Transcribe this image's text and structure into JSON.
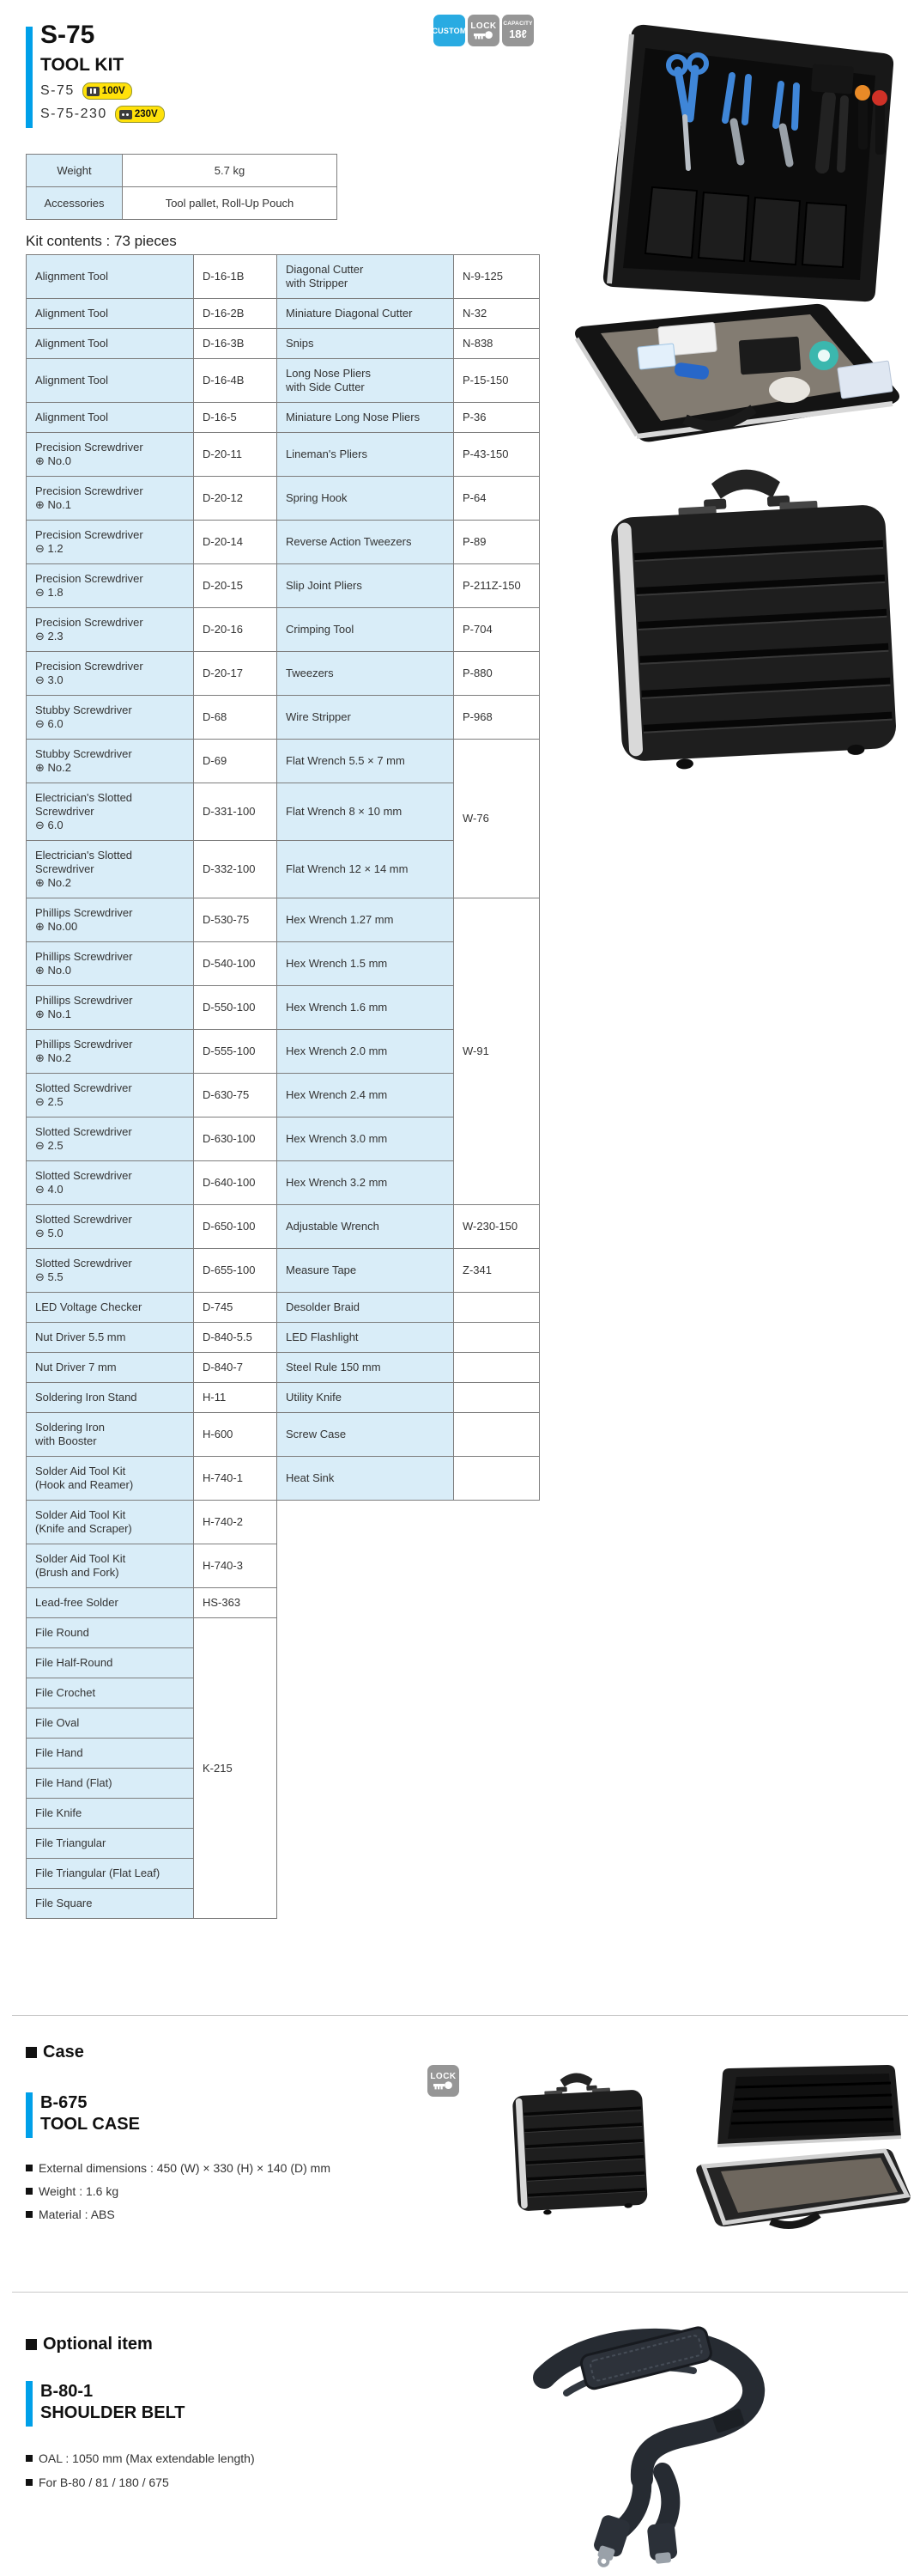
{
  "header": {
    "model": "S-75",
    "type": "TOOL KIT",
    "variants": [
      {
        "model": "S-75",
        "plug": "two-flat-pin",
        "voltage": "100V"
      },
      {
        "model": "S-75-230",
        "plug": "two-round-pin",
        "voltage": "230V"
      }
    ],
    "badges": {
      "custom": "CUSTOM",
      "lock": "LOCK",
      "capacity_label": "CAPACITY",
      "capacity_value": "18ℓ"
    }
  },
  "spec_table": {
    "rows": [
      {
        "label": "Weight",
        "value": "5.7 kg"
      },
      {
        "label": "Accessories",
        "value": "Tool pallet, Roll-Up Pouch"
      }
    ]
  },
  "kit_contents_heading": "Kit contents : 73 pieces",
  "kit_table": {
    "rows": [
      [
        {
          "t": "Alignment Tool",
          "c": "name"
        },
        {
          "t": "D-16-1B",
          "c": "model"
        },
        {
          "t": "Diagonal Cutter\nwith Stripper",
          "c": "name"
        },
        {
          "t": "N-9-125",
          "c": "model"
        }
      ],
      [
        {
          "t": "Alignment Tool",
          "c": "name"
        },
        {
          "t": "D-16-2B",
          "c": "model"
        },
        {
          "t": "Miniature Diagonal Cutter",
          "c": "name"
        },
        {
          "t": "N-32",
          "c": "model"
        }
      ],
      [
        {
          "t": "Alignment Tool",
          "c": "name"
        },
        {
          "t": "D-16-3B",
          "c": "model"
        },
        {
          "t": "Snips",
          "c": "name"
        },
        {
          "t": "N-838",
          "c": "model"
        }
      ],
      [
        {
          "t": "Alignment Tool",
          "c": "name"
        },
        {
          "t": "D-16-4B",
          "c": "model"
        },
        {
          "t": "Long Nose Pliers\nwith Side Cutter",
          "c": "name"
        },
        {
          "t": "P-15-150",
          "c": "model"
        }
      ],
      [
        {
          "t": "Alignment Tool",
          "c": "name"
        },
        {
          "t": "D-16-5",
          "c": "model"
        },
        {
          "t": "Miniature Long Nose Pliers",
          "c": "name"
        },
        {
          "t": "P-36",
          "c": "model"
        }
      ],
      [
        {
          "t": "Precision Screwdriver\n⊕ No.0",
          "c": "name"
        },
        {
          "t": "D-20-11",
          "c": "model"
        },
        {
          "t": "Lineman's Pliers",
          "c": "name"
        },
        {
          "t": "P-43-150",
          "c": "model"
        }
      ],
      [
        {
          "t": "Precision Screwdriver\n⊕ No.1",
          "c": "name"
        },
        {
          "t": "D-20-12",
          "c": "model"
        },
        {
          "t": "Spring Hook",
          "c": "name"
        },
        {
          "t": "P-64",
          "c": "model"
        }
      ],
      [
        {
          "t": "Precision Screwdriver\n⊖ 1.2",
          "c": "name"
        },
        {
          "t": "D-20-14",
          "c": "model"
        },
        {
          "t": "Reverse Action Tweezers",
          "c": "name"
        },
        {
          "t": "P-89",
          "c": "model"
        }
      ],
      [
        {
          "t": "Precision Screwdriver\n⊖ 1.8",
          "c": "name"
        },
        {
          "t": "D-20-15",
          "c": "model"
        },
        {
          "t": "Slip Joint Pliers",
          "c": "name"
        },
        {
          "t": "P-211Z-150",
          "c": "model"
        }
      ],
      [
        {
          "t": "Precision Screwdriver\n⊖ 2.3",
          "c": "name"
        },
        {
          "t": "D-20-16",
          "c": "model"
        },
        {
          "t": "Crimping Tool",
          "c": "name"
        },
        {
          "t": "P-704",
          "c": "model"
        }
      ],
      [
        {
          "t": "Precision Screwdriver\n⊖ 3.0",
          "c": "name"
        },
        {
          "t": "D-20-17",
          "c": "model"
        },
        {
          "t": "Tweezers",
          "c": "name"
        },
        {
          "t": "P-880",
          "c": "model"
        }
      ],
      [
        {
          "t": "Stubby Screwdriver\n⊖ 6.0",
          "c": "name"
        },
        {
          "t": "D-68",
          "c": "model"
        },
        {
          "t": "Wire Stripper",
          "c": "name"
        },
        {
          "t": "P-968",
          "c": "model"
        }
      ],
      [
        {
          "t": "Stubby Screwdriver\n⊕ No.2",
          "c": "name"
        },
        {
          "t": "D-69",
          "c": "model"
        },
        {
          "t": "Flat Wrench 5.5 × 7 mm",
          "c": "name"
        },
        {
          "t": "W-76",
          "c": "model",
          "rs": 3
        }
      ],
      [
        {
          "t": "Electrician's Slotted\nScrewdriver\n⊖ 6.0",
          "c": "name"
        },
        {
          "t": "D-331-100",
          "c": "model"
        },
        {
          "t": "Flat Wrench 8 × 10 mm",
          "c": "name"
        }
      ],
      [
        {
          "t": "Electrician's Slotted\nScrewdriver\n⊕ No.2",
          "c": "name"
        },
        {
          "t": "D-332-100",
          "c": "model"
        },
        {
          "t": "Flat Wrench 12 × 14 mm",
          "c": "name"
        }
      ],
      [
        {
          "t": "Phillips Screwdriver\n⊕ No.00",
          "c": "name"
        },
        {
          "t": "D-530-75",
          "c": "model"
        },
        {
          "t": "Hex Wrench 1.27 mm",
          "c": "name"
        },
        {
          "t": "W-91",
          "c": "model",
          "rs": 7
        }
      ],
      [
        {
          "t": "Phillips Screwdriver\n⊕ No.0",
          "c": "name"
        },
        {
          "t": "D-540-100",
          "c": "model"
        },
        {
          "t": "Hex Wrench 1.5 mm",
          "c": "name"
        }
      ],
      [
        {
          "t": "Phillips Screwdriver\n⊕ No.1",
          "c": "name"
        },
        {
          "t": "D-550-100",
          "c": "model"
        },
        {
          "t": "Hex Wrench 1.6 mm",
          "c": "name"
        }
      ],
      [
        {
          "t": "Phillips Screwdriver\n⊕ No.2",
          "c": "name"
        },
        {
          "t": "D-555-100",
          "c": "model"
        },
        {
          "t": "Hex Wrench 2.0 mm",
          "c": "name"
        }
      ],
      [
        {
          "t": "Slotted Screwdriver\n⊖ 2.5",
          "c": "name"
        },
        {
          "t": "D-630-75",
          "c": "model"
        },
        {
          "t": "Hex Wrench 2.4 mm",
          "c": "name"
        }
      ],
      [
        {
          "t": "Slotted Screwdriver\n⊖ 2.5",
          "c": "name"
        },
        {
          "t": "D-630-100",
          "c": "model"
        },
        {
          "t": "Hex Wrench 3.0 mm",
          "c": "name"
        }
      ],
      [
        {
          "t": "Slotted Screwdriver\n⊖ 4.0",
          "c": "name"
        },
        {
          "t": "D-640-100",
          "c": "model"
        },
        {
          "t": "Hex Wrench 3.2 mm",
          "c": "name"
        }
      ],
      [
        {
          "t": "Slotted Screwdriver\n⊖ 5.0",
          "c": "name"
        },
        {
          "t": "D-650-100",
          "c": "model"
        },
        {
          "t": "Adjustable Wrench",
          "c": "name"
        },
        {
          "t": "W-230-150",
          "c": "model"
        }
      ],
      [
        {
          "t": "Slotted Screwdriver\n⊖ 5.5",
          "c": "name"
        },
        {
          "t": "D-655-100",
          "c": "model"
        },
        {
          "t": "Measure Tape",
          "c": "name"
        },
        {
          "t": "Z-341",
          "c": "model"
        }
      ],
      [
        {
          "t": "LED Voltage Checker",
          "c": "name"
        },
        {
          "t": "D-745",
          "c": "model"
        },
        {
          "t": "Desolder Braid",
          "c": "name"
        },
        {
          "t": "",
          "c": "model"
        }
      ],
      [
        {
          "t": "Nut Driver 5.5 mm",
          "c": "name"
        },
        {
          "t": "D-840-5.5",
          "c": "model"
        },
        {
          "t": "LED Flashlight",
          "c": "name"
        },
        {
          "t": "",
          "c": "model"
        }
      ],
      [
        {
          "t": "Nut Driver 7 mm",
          "c": "name"
        },
        {
          "t": "D-840-7",
          "c": "model"
        },
        {
          "t": "Steel Rule 150 mm",
          "c": "name"
        },
        {
          "t": "",
          "c": "model"
        }
      ],
      [
        {
          "t": "Soldering Iron Stand",
          "c": "name"
        },
        {
          "t": "H-11",
          "c": "model"
        },
        {
          "t": "Utility Knife",
          "c": "name"
        },
        {
          "t": "",
          "c": "model"
        }
      ],
      [
        {
          "t": "Soldering Iron\nwith Booster",
          "c": "name"
        },
        {
          "t": "H-600",
          "c": "model"
        },
        {
          "t": "Screw Case",
          "c": "name"
        },
        {
          "t": "",
          "c": "model"
        }
      ],
      [
        {
          "t": "Solder Aid Tool Kit\n(Hook and Reamer)",
          "c": "name"
        },
        {
          "t": "H-740-1",
          "c": "model"
        },
        {
          "t": "Heat Sink",
          "c": "name"
        },
        {
          "t": "",
          "c": "model"
        }
      ],
      [
        {
          "t": "Solder Aid Tool Kit\n(Knife and Scraper)",
          "c": "name"
        },
        {
          "t": "H-740-2",
          "c": "model"
        }
      ],
      [
        {
          "t": "Solder Aid Tool Kit\n(Brush and Fork)",
          "c": "name"
        },
        {
          "t": "H-740-3",
          "c": "model"
        }
      ],
      [
        {
          "t": "Lead-free Solder",
          "c": "name"
        },
        {
          "t": "HS-363",
          "c": "model"
        }
      ],
      [
        {
          "t": "File Round",
          "c": "name"
        },
        {
          "t": "K-215",
          "c": "model",
          "rs": 10
        }
      ],
      [
        {
          "t": "File Half-Round",
          "c": "name"
        }
      ],
      [
        {
          "t": "File Crochet",
          "c": "name"
        }
      ],
      [
        {
          "t": "File Oval",
          "c": "name"
        }
      ],
      [
        {
          "t": "File Hand",
          "c": "name"
        }
      ],
      [
        {
          "t": "File Hand (Flat)",
          "c": "name"
        }
      ],
      [
        {
          "t": "File Knife",
          "c": "name"
        }
      ],
      [
        {
          "t": "File Triangular",
          "c": "name"
        }
      ],
      [
        {
          "t": "File Triangular (Flat Leaf)",
          "c": "name"
        }
      ],
      [
        {
          "t": "File Square",
          "c": "name"
        }
      ]
    ]
  },
  "case_section": {
    "heading": "Case",
    "lock_badge": "LOCK",
    "model": "B-675",
    "type": "TOOL CASE",
    "specs": [
      "External dimensions : 450 (W) × 330 (H) × 140 (D)  mm",
      "Weight : 1.6 kg",
      "Material : ABS"
    ]
  },
  "optional_section": {
    "heading": "Optional item",
    "model": "B-80-1",
    "type": "SHOULDER BELT",
    "specs": [
      "OAL : 1050 mm (Max extendable length)",
      "For B-80 / 81 / 180 / 675"
    ]
  },
  "colors": {
    "accent_blue": "#00a0e9",
    "custom_badge_blue": "#29abe2",
    "badge_gray": "#969696",
    "table_cell_blue": "#d9edf8",
    "voltage_badge_yellow": "#ffe10a"
  }
}
